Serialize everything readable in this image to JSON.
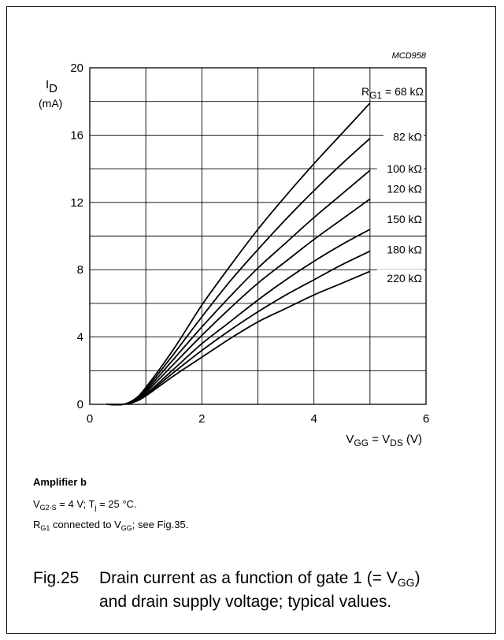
{
  "chart_data": {
    "type": "line",
    "figure_code": "MCD958",
    "xlabel": {
      "main": "V",
      "sub1": "GG",
      "mid": " = V",
      "sub2": "DS",
      "unit": " (V)"
    },
    "ylabel": {
      "main": "I",
      "sub": "D",
      "unit": "(mA)"
    },
    "xlim": [
      0,
      6
    ],
    "ylim": [
      0,
      20
    ],
    "xticks": [
      "0",
      "2",
      "4",
      "6"
    ],
    "yticks": [
      "0",
      "4",
      "8",
      "12",
      "16",
      "20"
    ],
    "x_grid_step": 1,
    "y_grid_step": 2,
    "grid": true,
    "legend_prefix": {
      "main": "R",
      "sub": "G1",
      "mid": " = "
    },
    "series": [
      {
        "name": "68 kΩ",
        "x": [
          0.3,
          0.6,
          0.8,
          1,
          1.5,
          2,
          2.5,
          3,
          3.5,
          4,
          4.5,
          5
        ],
        "y": [
          0,
          0,
          0.3,
          1.0,
          3.3,
          5.9,
          8.2,
          10.4,
          12.4,
          14.3,
          16.1,
          17.9
        ]
      },
      {
        "name": "82 kΩ",
        "x": [
          0.3,
          0.6,
          0.8,
          1,
          1.5,
          2,
          2.5,
          3,
          3.5,
          4,
          4.5,
          5
        ],
        "y": [
          0,
          0,
          0.3,
          0.9,
          3.0,
          5.2,
          7.3,
          9.2,
          11.0,
          12.7,
          14.3,
          15.8
        ]
      },
      {
        "name": "100 kΩ",
        "x": [
          0.3,
          0.6,
          0.8,
          1,
          1.5,
          2,
          2.5,
          3,
          3.5,
          4,
          4.5,
          5
        ],
        "y": [
          0,
          0,
          0.25,
          0.8,
          2.7,
          4.6,
          6.4,
          8.1,
          9.6,
          11.1,
          12.5,
          13.9
        ]
      },
      {
        "name": "120 kΩ",
        "x": [
          0.3,
          0.6,
          0.8,
          1,
          1.5,
          2,
          2.5,
          3,
          3.5,
          4,
          4.5,
          5
        ],
        "y": [
          0,
          0,
          0.2,
          0.7,
          2.4,
          4.1,
          5.7,
          7.2,
          8.5,
          9.8,
          11.0,
          12.2
        ]
      },
      {
        "name": "150 kΩ",
        "x": [
          0.3,
          0.6,
          0.8,
          1,
          1.5,
          2,
          2.5,
          3,
          3.5,
          4,
          4.5,
          5
        ],
        "y": [
          0,
          0,
          0.2,
          0.6,
          2.1,
          3.6,
          4.9,
          6.2,
          7.4,
          8.5,
          9.5,
          10.4
        ]
      },
      {
        "name": "180 kΩ",
        "x": [
          0.3,
          0.6,
          0.8,
          1,
          1.5,
          2,
          2.5,
          3,
          3.5,
          4,
          4.5,
          5
        ],
        "y": [
          0,
          0,
          0.15,
          0.55,
          1.9,
          3.2,
          4.4,
          5.5,
          6.5,
          7.4,
          8.3,
          9.1
        ]
      },
      {
        "name": "220 kΩ",
        "x": [
          0.3,
          0.6,
          0.8,
          1,
          1.5,
          2,
          2.5,
          3,
          3.5,
          4,
          4.5,
          5
        ],
        "y": [
          0,
          0,
          0.15,
          0.5,
          1.7,
          2.8,
          3.9,
          4.9,
          5.7,
          6.5,
          7.2,
          7.9
        ]
      }
    ],
    "label_values": [
      18.6,
      15.9,
      14.0,
      12.8,
      11.0,
      9.2,
      7.5
    ]
  },
  "notes": {
    "title": "Amplifier b",
    "line1": {
      "a": "V",
      "a_sub": "G2-S",
      "b": " = 4 V; T",
      "b_sub": "j",
      "c": " = 25 °C."
    },
    "line2": {
      "a": "R",
      "a_sub": "G1",
      "b": " connected to V",
      "b_sub": "GG",
      "c": "; see Fig.35."
    }
  },
  "caption": {
    "fig": "Fig.25",
    "line1": {
      "a": "Drain current as a function of gate 1 (= V",
      "sub": "GG",
      "b": ")"
    },
    "line2": "and drain supply voltage; typical values."
  }
}
